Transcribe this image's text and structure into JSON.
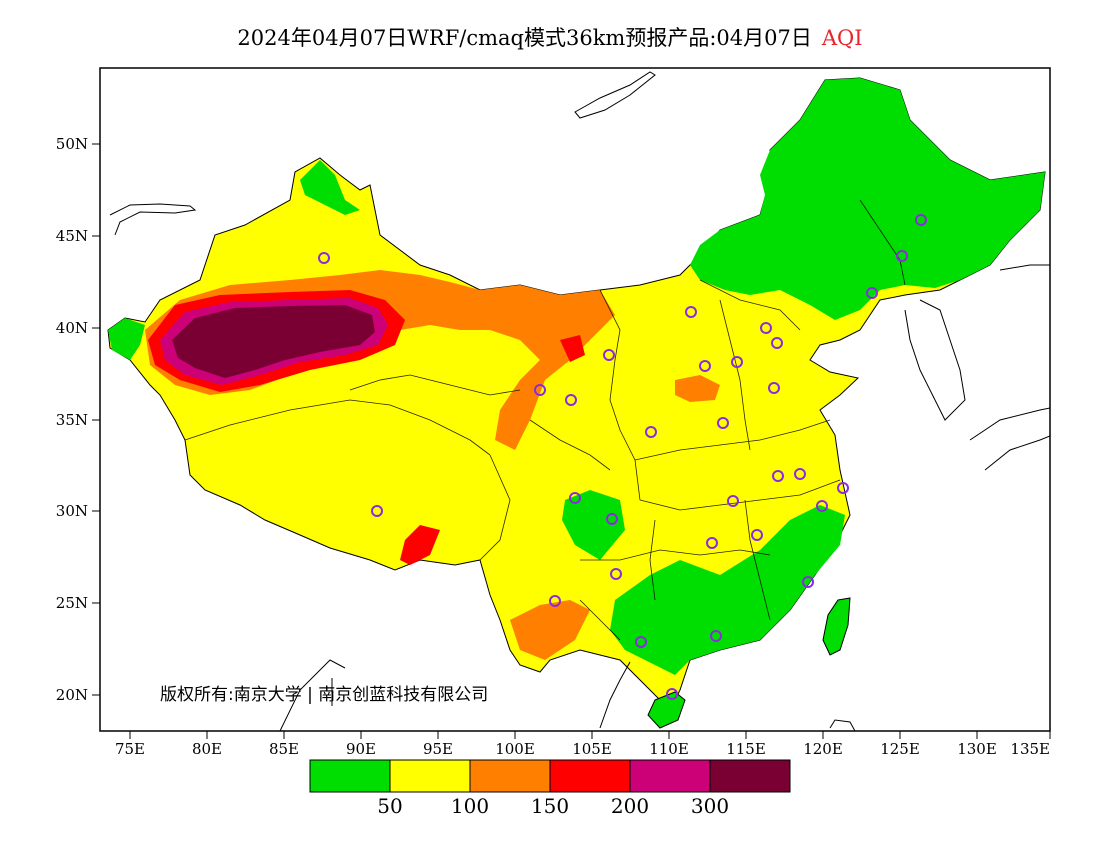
{
  "title": {
    "main": "2024年04月07日WRF/cmaq模式36km预报产品:04月07日",
    "product": "AQI"
  },
  "axes": {
    "lat_labels": [
      "50N",
      "45N",
      "40N",
      "35N",
      "30N",
      "25N",
      "20N"
    ],
    "lon_labels": [
      "75E",
      "80E",
      "85E",
      "90E",
      "95E",
      "100E",
      "105E",
      "110E",
      "115E",
      "120E",
      "125E",
      "130E",
      "135E"
    ]
  },
  "copyright": "版权所有:南京大学 | 南京创蓝科技有限公司",
  "legend": {
    "colors": [
      "#00dd00",
      "#ffff00",
      "#ff8000",
      "#ff0000",
      "#cc0077",
      "#7a0033"
    ],
    "labels": [
      "50",
      "100",
      "150",
      "200",
      "300"
    ]
  },
  "colors": {
    "good": "#00dd00",
    "moderate": "#ffff00",
    "sensitive": "#ff8000",
    "unhealthy": "#ff0000",
    "very_unhealthy": "#cc0077",
    "hazardous": "#7a0033",
    "station_marker": "#8a2be2"
  }
}
